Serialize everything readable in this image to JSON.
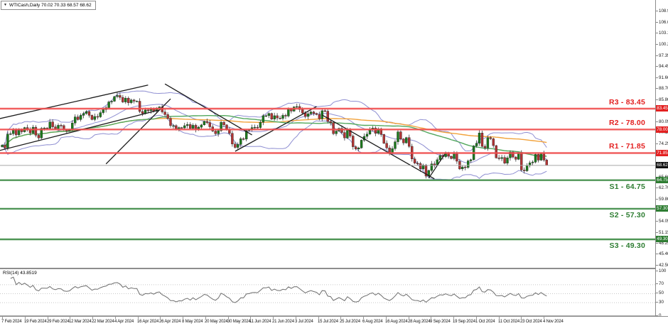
{
  "window": {
    "title": "WTICash,Daily 70.02 70.33 68.57 68.62",
    "symbol": "WTICash",
    "timeframe": "Daily",
    "menu_icon": "▼"
  },
  "colors": {
    "background": "#ffffff",
    "bull": "#1c7a1c",
    "bear": "#b23434",
    "wick": "#3c3c3c",
    "bollinger": "#8f8fd2",
    "ma_slow": "#f2a33c",
    "ma_fast": "#53a85e",
    "resistance": "#ef4e4e",
    "support": "#3c8b44",
    "resistance_text": "#e32020",
    "support_text": "#2e7d32",
    "current_price_line": "#a8a8a8",
    "current_badge_bg": "#111111",
    "trendline": "#1a1a1a",
    "rsi_line": "#6e6e6e",
    "grid_dotted": "#c8c8c8",
    "border": "#8c8c8c"
  },
  "chart_data": {
    "type": "candlestick",
    "title": "WTICash,Daily",
    "ohlc_display": {
      "open": "70.02",
      "high": "70.33",
      "low": "68.57",
      "close": "68.62"
    },
    "price_axis_ticks": [
      108.9,
      106.0,
      103.15,
      100.25,
      97.35,
      94.45,
      91.6,
      88.7,
      85.8,
      82.9,
      80.05,
      77.15,
      74.25,
      71.35,
      68.45,
      65.6,
      62.7,
      59.8,
      56.9,
      54.05,
      51.15,
      48.25,
      45.4,
      42.5
    ],
    "date_labels": [
      "7 Feb 2024",
      "19 Feb 2024",
      "29 Feb 2024",
      "12 Mar 2024",
      "22 Mar 2024",
      "4 Apr 2024",
      "16 Apr 2024",
      "26 Apr 2024",
      "8 May 2024",
      "20 May 2024",
      "30 May 2024",
      "11 Jun 2024",
      "21 Jun 2024",
      "3 Jul 2024",
      "15 Jul 2024",
      "25 Jul 2024",
      "6 Aug 2024",
      "16 Aug 2024",
      "28 Aug 2024",
      "9 Sep 2024",
      "19 Sep 2024",
      "1 Oct 2024",
      "11 Oct 2024",
      "23 Oct 2024",
      "4 Nov 2024"
    ],
    "levels": [
      {
        "name": "R3",
        "label": "R3 - 83.45",
        "price": 83.45,
        "type": "resistance"
      },
      {
        "name": "R2",
        "label": "R2 - 78.00",
        "price": 78.0,
        "type": "resistance"
      },
      {
        "name": "R1",
        "label": "R1 - 71.85",
        "price": 71.85,
        "type": "resistance"
      },
      {
        "name": "S1",
        "label": "S1 - 64.75",
        "price": 64.75,
        "type": "support"
      },
      {
        "name": "S2",
        "label": "S2 - 57.30",
        "price": 57.3,
        "type": "support"
      },
      {
        "name": "S3",
        "label": "S3 - 49.30",
        "price": 49.3,
        "type": "support"
      }
    ],
    "current_price": 68.62,
    "candles": {
      "first_open": 73.5,
      "closes": [
        73.9,
        73.2,
        76.8,
        76.9,
        77.9,
        76.6,
        78.0,
        77.4,
        78.5,
        77.9,
        77.1,
        78.6,
        76.5,
        75.8,
        78.3,
        78.4,
        78.3,
        80.0,
        78.7,
        78.2,
        79.1,
        79.0,
        77.9,
        77.6,
        78.0,
        79.7,
        81.3,
        80.6,
        81.7,
        82.2,
        82.7,
        81.7,
        80.6,
        81.4,
        81.3,
        82.4,
        83.2,
        83.7,
        85.2,
        85.4,
        86.6,
        86.9,
        86.4,
        85.2,
        86.2,
        85.0,
        85.7,
        85.4,
        85.4,
        82.7,
        82.2,
        83.1,
        82.9,
        83.4,
        82.8,
        83.6,
        83.9,
        82.6,
        81.9,
        80.9,
        79.0,
        79.0,
        78.1,
        78.5,
        78.4,
        79.0,
        79.3,
        78.3,
        79.1,
        78.0,
        78.6,
        79.2,
        80.1,
        79.8,
        78.7,
        77.6,
        76.9,
        77.7,
        79.9,
        79.2,
        77.9,
        77.0,
        74.2,
        73.3,
        74.1,
        75.6,
        75.5,
        77.7,
        77.9,
        78.5,
        78.6,
        78.5,
        79.9,
        81.6,
        81.6,
        82.2,
        80.7,
        81.6,
        81.0,
        80.9,
        81.7,
        81.5,
        83.4,
        82.8,
        83.9,
        84.0,
        83.2,
        82.3,
        81.4,
        82.1,
        82.6,
        82.2,
        81.9,
        80.8,
        82.9,
        82.8,
        80.1,
        79.8,
        76.9,
        77.6,
        78.3,
        77.2,
        75.8,
        77.9,
        76.3,
        73.5,
        72.9,
        73.2,
        75.2,
        76.2,
        76.8,
        78.0,
        78.4,
        77.0,
        78.2,
        76.7,
        74.4,
        73.2,
        71.9,
        73.0,
        74.8,
        77.4,
        75.5,
        74.5,
        75.9,
        73.6,
        70.3,
        69.2,
        69.1,
        67.7,
        68.7,
        65.8,
        67.3,
        69.0,
        68.7,
        70.1,
        71.2,
        70.9,
        71.9,
        71.0,
        70.4,
        71.6,
        69.7,
        67.7,
        68.2,
        68.1,
        69.8,
        70.1,
        73.7,
        74.4,
        77.1,
        73.6,
        73.2,
        75.9,
        75.6,
        73.8,
        70.6,
        70.4,
        70.7,
        69.2,
        70.6,
        72.1,
        70.8,
        70.2,
        71.8,
        67.4,
        67.2,
        68.6,
        69.3,
        69.5,
        71.5,
        70.0,
        71.7,
        70.02,
        68.62
      ]
    },
    "last_candle": {
      "open": 70.02,
      "high": 70.33,
      "low": 68.57,
      "close": 68.62
    },
    "trendlines": [
      [
        -1,
        80.8,
        52,
        89.6
      ],
      [
        -1,
        72.5,
        56,
        83.1
      ],
      [
        37,
        69.0,
        60,
        86.0
      ],
      [
        58,
        89.9,
        89,
        76.6
      ],
      [
        83,
        72.3,
        112,
        84.0
      ],
      [
        114,
        81.8,
        154,
        65.1
      ],
      [
        152,
        65.3,
        158,
        71.9
      ]
    ],
    "indicators": {
      "bollinger": {
        "period": 20,
        "deviation": 2
      },
      "ma_fast_period": 55,
      "ma_slow_period": 100
    },
    "rsi": {
      "label": "RSI(14) 43.8519",
      "period": 14,
      "value": 43.8519,
      "scale_labels": [
        100,
        70,
        50,
        30,
        0
      ],
      "dotted_levels": [
        70,
        50,
        30
      ]
    }
  }
}
